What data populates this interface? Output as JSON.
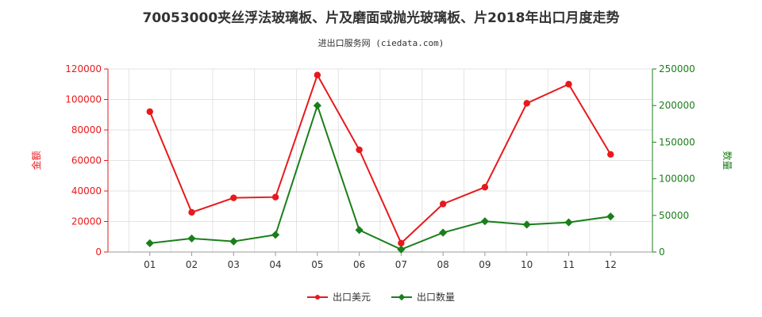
{
  "title": "70053000夹丝浮法玻璃板、片及磨面或抛光玻璃板、片2018年出口月度走势",
  "subtitle": "进出口服务网 (ciedata.com)",
  "chart_data": {
    "type": "line",
    "categories": [
      "01",
      "02",
      "03",
      "04",
      "05",
      "06",
      "07",
      "08",
      "09",
      "10",
      "11",
      "12"
    ],
    "series": [
      {
        "name": "出口美元",
        "axis": "left",
        "color": "#e8191c",
        "marker": "circle",
        "values": [
          92000,
          26000,
          35500,
          36000,
          116000,
          67000,
          5800,
          31500,
          42500,
          97500,
          110000,
          64000
        ]
      },
      {
        "name": "出口数量",
        "axis": "right",
        "color": "#1a7f1a",
        "marker": "diamond",
        "values": [
          12000,
          18500,
          14500,
          23500,
          200000,
          30000,
          3500,
          26500,
          42000,
          37500,
          40500,
          48500
        ]
      }
    ],
    "ylabel_left": "金额",
    "ylabel_right": "数量",
    "ylim_left": [
      0,
      120000
    ],
    "ylim_right": [
      0,
      250000
    ],
    "yticks_left": [
      "0",
      "20000",
      "40000",
      "60000",
      "80000",
      "100000",
      "120000"
    ],
    "yticks_right": [
      "0",
      "50000",
      "100000",
      "150000",
      "200000",
      "250000"
    ],
    "left_axis_color": "#e8191c",
    "right_axis_color": "#1a7f1a",
    "grid": true,
    "legend_position": "bottom"
  }
}
